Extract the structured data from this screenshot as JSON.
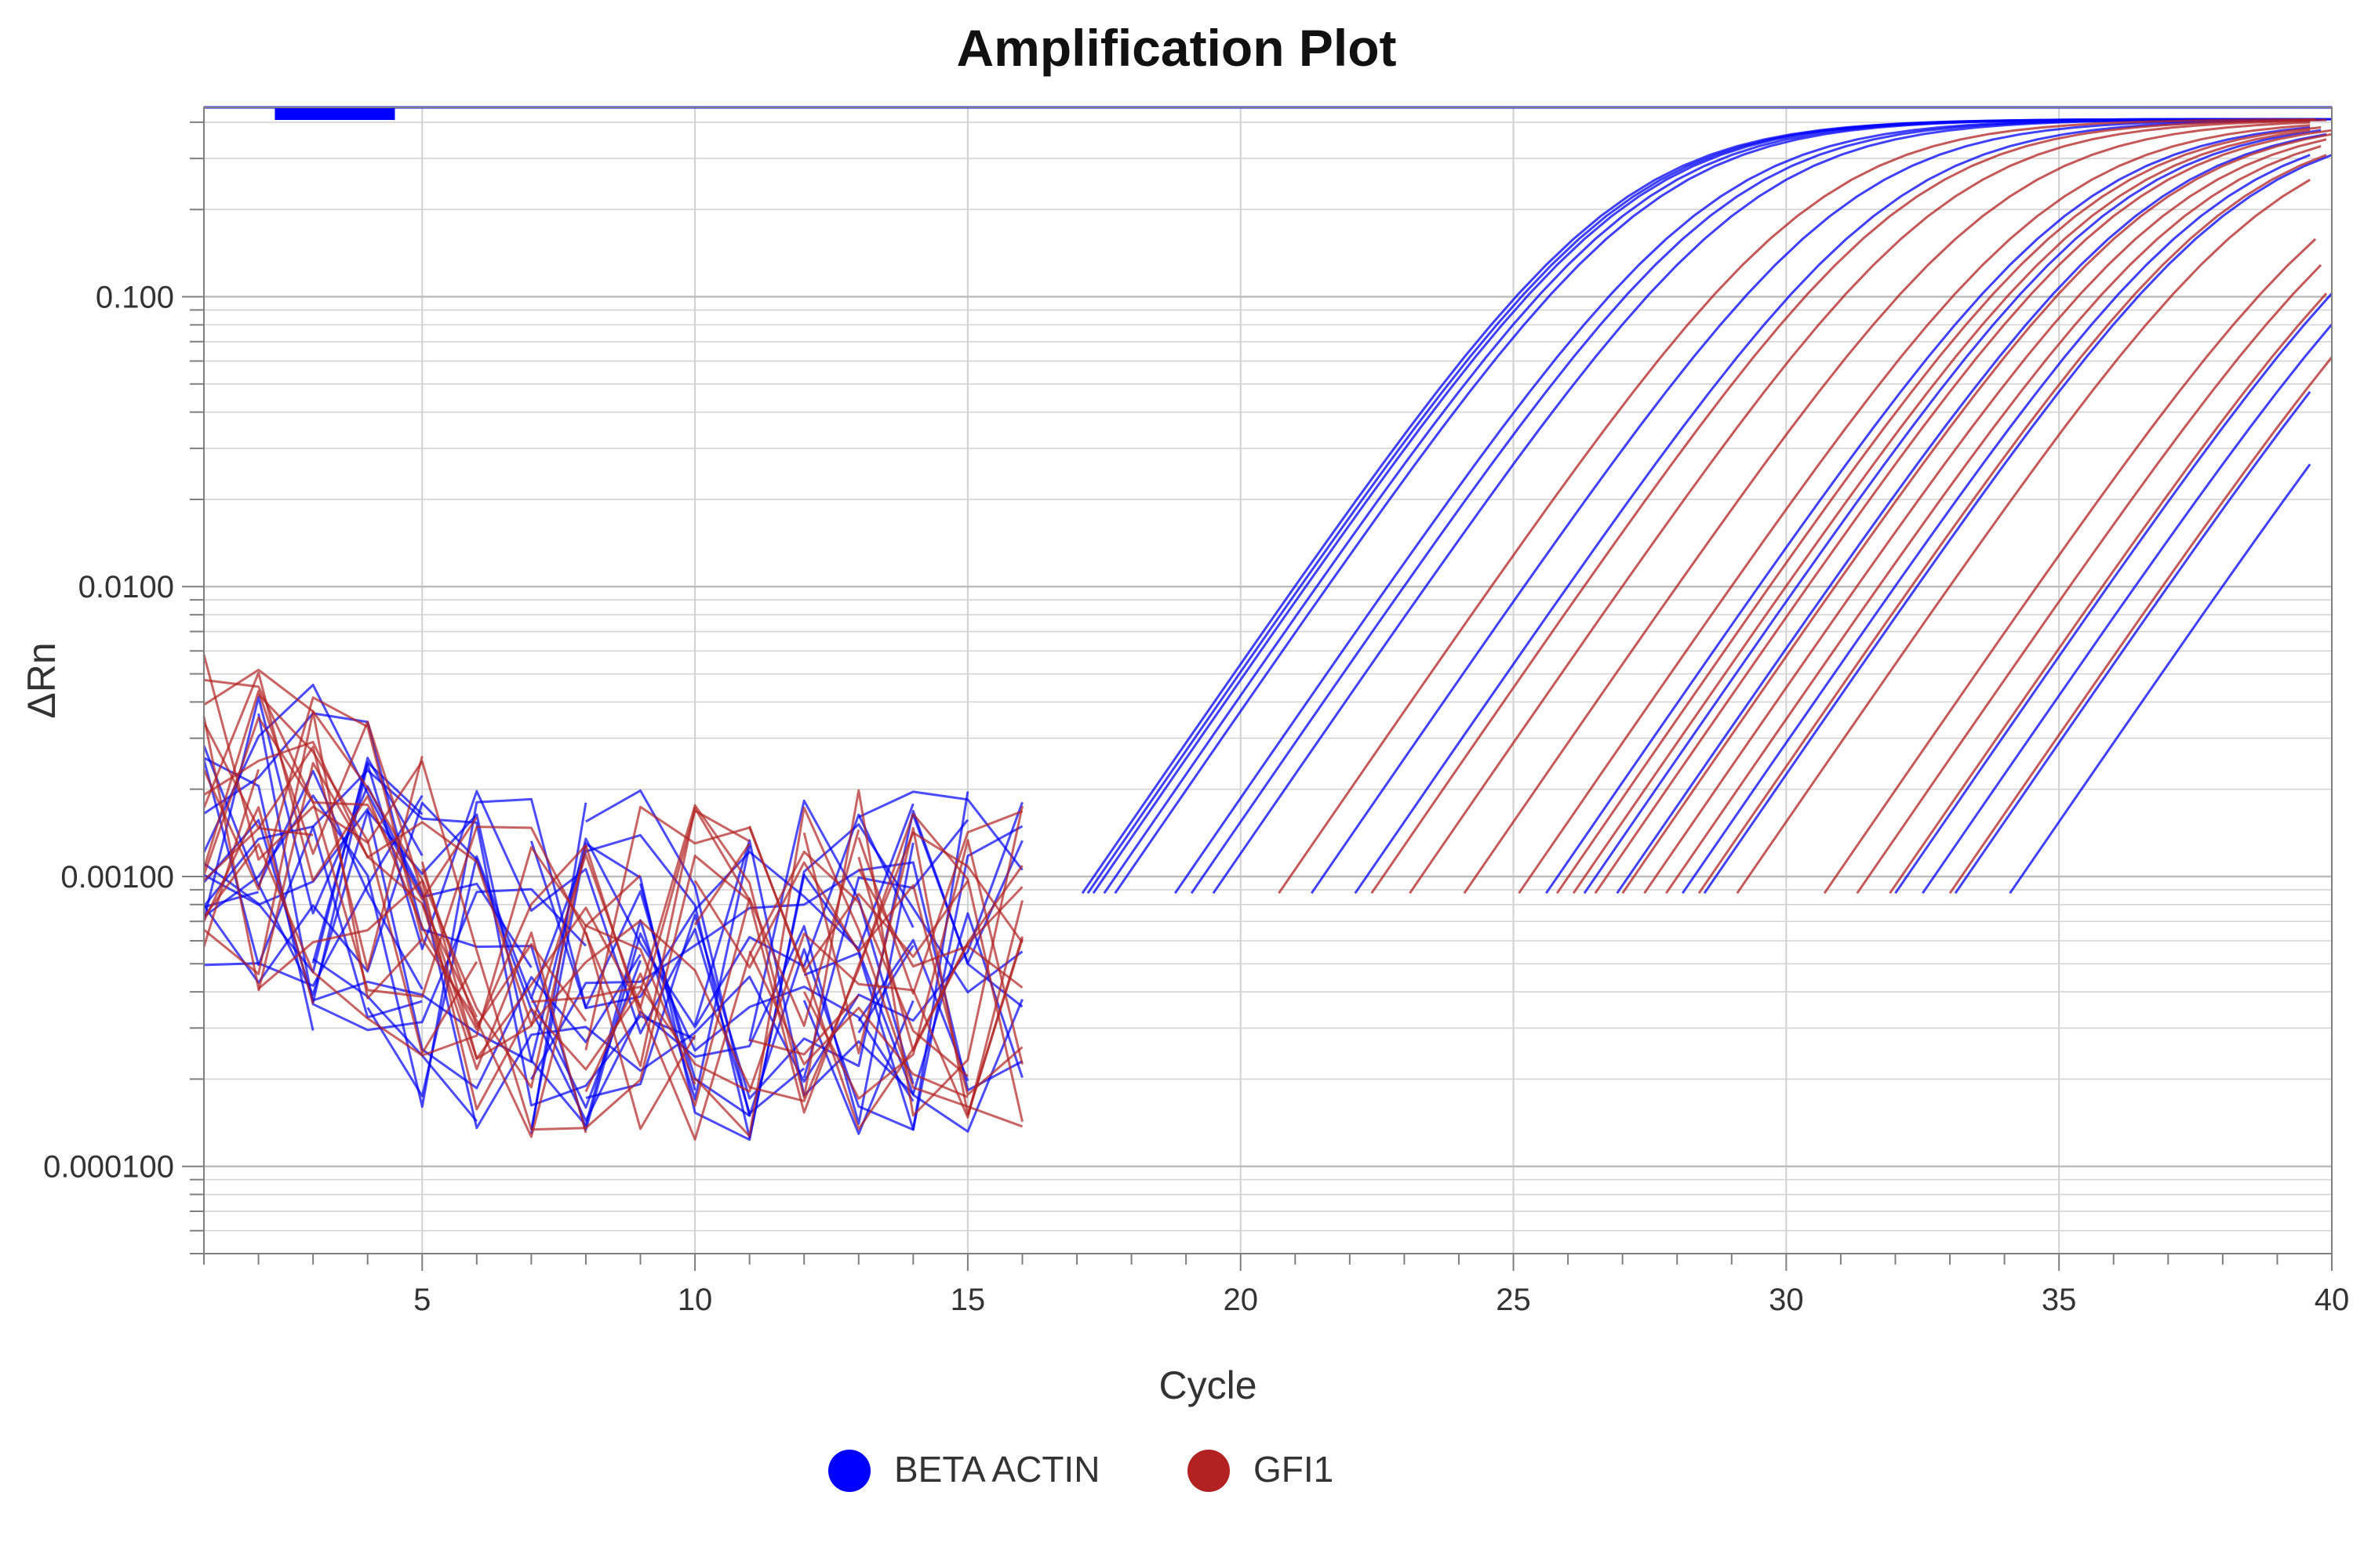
{
  "chart_data": {
    "type": "line",
    "title": "Amplification Plot",
    "xlabel": "Cycle",
    "ylabel": "ΔRn",
    "x_scale": "linear",
    "y_scale": "log",
    "xlim": [
      1,
      40
    ],
    "ylim": [
      5e-05,
      0.45
    ],
    "x_ticks": [
      "5",
      "10",
      "15",
      "20",
      "25",
      "30",
      "35",
      "40"
    ],
    "y_ticks": [
      "0.100",
      "0.0100",
      "0.00100",
      "0.000100"
    ],
    "grid": true,
    "legend_position": "bottom",
    "threshold": 0.45,
    "colors": {
      "BETA ACTIN": "#0000ff",
      "GFI1": "#b22222"
    },
    "series": [
      {
        "name": "BETA ACTIN",
        "color": "#0000ff",
        "approximate_ct": [
          17.6,
          17.7,
          17.8,
          18.0,
          18.2,
          19.3,
          19.6,
          20.0,
          21.8,
          22.6,
          26.1,
          26.8,
          27.4,
          28.6,
          29.0,
          32.5,
          33.0,
          33.6,
          34.6
        ]
      },
      {
        "name": "GFI1",
        "color": "#b22222",
        "approximate_ct": [
          21.2,
          22.9,
          23.6,
          24.6,
          25.6,
          26.3,
          26.6,
          27.0,
          27.5,
          27.9,
          28.3,
          28.9,
          29.6,
          31.2,
          31.8,
          32.4,
          33.5
        ]
      }
    ]
  }
}
